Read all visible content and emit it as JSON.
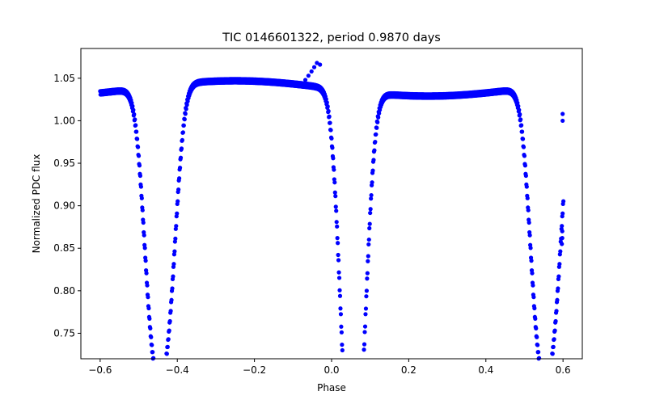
{
  "chart_data": {
    "type": "scatter",
    "title": "TIC 0146601322, period 0.9870 days",
    "xlabel": "Phase",
    "ylabel": "Normalized PDC flux",
    "xlim": [
      -0.65,
      0.65
    ],
    "ylim": [
      0.72,
      1.085
    ],
    "x_ticks": [
      -0.6,
      -0.4,
      -0.2,
      0.0,
      0.2,
      0.4,
      0.6
    ],
    "x_tick_labels": [
      "−0.6",
      "−0.4",
      "−0.2",
      "0.0",
      "0.2",
      "0.4",
      "0.6"
    ],
    "y_ticks": [
      0.75,
      0.8,
      0.85,
      0.9,
      0.95,
      1.0,
      1.05
    ],
    "y_tick_labels": [
      "0.75",
      "0.80",
      "0.85",
      "0.90",
      "0.95",
      "1.00",
      "1.05"
    ],
    "grid": false,
    "marker_color": "#0000ff",
    "baseline_flux": 1.04,
    "eclipses": [
      {
        "center": -0.465,
        "depth": 0.255,
        "width": 0.023
      },
      {
        "center": -0.425,
        "depth": 0.25,
        "width": 0.023
      },
      {
        "center": 0.04,
        "depth": 0.31,
        "width": 0.022
      },
      {
        "center": 0.072,
        "depth": 0.305,
        "width": 0.022
      },
      {
        "center": 0.535,
        "depth": 0.255,
        "width": 0.023
      },
      {
        "center": 0.575,
        "depth": 0.25,
        "width": 0.023
      }
    ],
    "extra_points": [
      {
        "x": -0.068,
        "y": 1.048
      },
      {
        "x": -0.06,
        "y": 1.053
      },
      {
        "x": -0.052,
        "y": 1.058
      },
      {
        "x": -0.045,
        "y": 1.063
      },
      {
        "x": -0.038,
        "y": 1.068
      },
      {
        "x": -0.03,
        "y": 1.066
      },
      {
        "x": 0.598,
        "y": 0.87
      },
      {
        "x": 0.598,
        "y": 0.862
      },
      {
        "x": 0.597,
        "y": 0.855
      },
      {
        "x": 0.599,
        "y": 1.008
      },
      {
        "x": 0.599,
        "y": 1.0
      }
    ]
  }
}
